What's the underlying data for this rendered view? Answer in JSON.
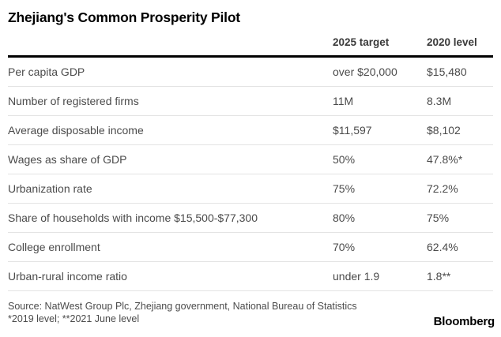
{
  "title": "Zhejiang's Common Prosperity Pilot",
  "table": {
    "columns": [
      "2025 target",
      "2020 level"
    ],
    "rows": [
      {
        "label": "Per capita GDP",
        "target": "over $20,000",
        "level": "$15,480"
      },
      {
        "label": "Number of registered firms",
        "target": "11M",
        "level": "8.3M"
      },
      {
        "label": "Average disposable income",
        "target": "$11,597",
        "level": "$8,102"
      },
      {
        "label": "Wages as share of GDP",
        "target": "50%",
        "level": "47.8%*"
      },
      {
        "label": "Urbanization rate",
        "target": "75%",
        "level": "72.2%"
      },
      {
        "label": "Share of households with income $15,500-$77,300",
        "target": "80%",
        "level": "75%"
      },
      {
        "label": "College enrollment",
        "target": "70%",
        "level": "62.4%"
      },
      {
        "label": "Urban-rural income ratio",
        "target": "under 1.9",
        "level": "1.8**"
      }
    ]
  },
  "source": {
    "line1": "Source: NatWest Group Plc, Zhejiang government, National Bureau of Statistics",
    "line2": "*2019 level; **2021 June level"
  },
  "brand": "Bloomberg",
  "colors": {
    "title": "#000000",
    "header_text": "#3a3a3a",
    "body_text": "#4b4b4b",
    "thick_rule": "#000000",
    "row_separator": "#e3e3e3",
    "background": "#ffffff"
  },
  "chart_data": {
    "type": "table",
    "title": "Zhejiang's Common Prosperity Pilot",
    "columns": [
      "",
      "2025 target",
      "2020 level"
    ],
    "rows": [
      [
        "Per capita GDP",
        "over $20,000",
        "$15,480"
      ],
      [
        "Number of registered firms",
        "11M",
        "8.3M"
      ],
      [
        "Average disposable income",
        "$11,597",
        "$8,102"
      ],
      [
        "Wages as share of GDP",
        "50%",
        "47.8%*"
      ],
      [
        "Urbanization rate",
        "75%",
        "72.2%"
      ],
      [
        "Share of households with income $15,500-$77,300",
        "80%",
        "75%"
      ],
      [
        "College enrollment",
        "70%",
        "62.4%"
      ],
      [
        "Urban-rural income ratio",
        "under 1.9",
        "1.8**"
      ]
    ],
    "footnotes": [
      "*2019 level",
      "**2021 June level"
    ],
    "source": "NatWest Group Plc, Zhejiang government, National Bureau of Statistics"
  }
}
